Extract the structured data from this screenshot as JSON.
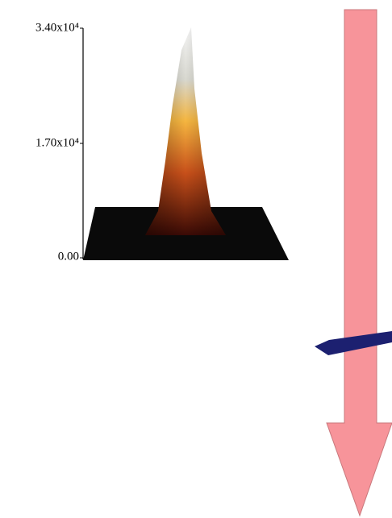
{
  "axis": {
    "ticks": [
      "3.40x10⁴",
      "1.70x10⁴",
      "0.00"
    ]
  }
}
